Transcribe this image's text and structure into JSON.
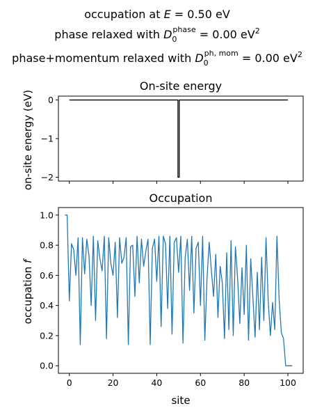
{
  "suptitle": {
    "line1": {
      "pre": "occupation at ",
      "var": "E",
      "post": " = 0.50 eV"
    },
    "line2": {
      "pre": "phase relaxed with ",
      "var": "D",
      "sub": "0",
      "sup": "phase",
      "post": " = 0.00 eV",
      "unit_sup": "2"
    },
    "line3": {
      "pre": "phase+momentum relaxed with ",
      "var": "D",
      "sub": "0",
      "sup": "ph, mom",
      "post": " = 0.00 eV",
      "unit_sup": "2"
    }
  },
  "chart_data": [
    {
      "type": "line",
      "title": "On-site energy",
      "xlabel": "",
      "ylabel": "on-site energy (eV)",
      "xlim": [
        -5,
        107
      ],
      "ylim": [
        -2.1,
        0.1
      ],
      "yticks": [
        0,
        -1,
        -2
      ],
      "ytick_labels": [
        "0",
        "−1",
        "−2"
      ],
      "xticks": [
        0,
        20,
        40,
        60,
        80,
        100
      ],
      "xtick_labels_shown": false,
      "color": "#000000",
      "series": [
        {
          "x": [
            0,
            49.7,
            49.7,
            50.3,
            50.3,
            100
          ],
          "y": [
            0,
            0,
            -2,
            -2,
            0,
            0
          ]
        }
      ]
    },
    {
      "type": "line",
      "title": "Occupation",
      "xlabel": "site",
      "ylabel": "occupation f",
      "xlim": [
        -5,
        107
      ],
      "ylim": [
        -0.05,
        1.05
      ],
      "yticks": [
        0.0,
        0.2,
        0.4,
        0.6,
        0.8,
        1.0
      ],
      "ytick_labels": [
        "0.0",
        "0.2",
        "0.4",
        "0.6",
        "0.8",
        "1.0"
      ],
      "xticks": [
        0,
        20,
        40,
        60,
        80,
        100
      ],
      "xtick_labels": [
        "0",
        "20",
        "40",
        "60",
        "80",
        "100"
      ],
      "color": "#1f77b4",
      "series": [
        {
          "x": [
            -2,
            -1,
            0,
            1,
            2,
            3,
            4,
            5,
            6,
            7,
            8,
            9,
            10,
            11,
            12,
            13,
            14,
            15,
            16,
            17,
            18,
            19,
            20,
            21,
            22,
            23,
            24,
            25,
            26,
            27,
            28,
            29,
            30,
            31,
            32,
            33,
            34,
            35,
            36,
            37,
            38,
            39,
            40,
            41,
            42,
            43,
            44,
            45,
            46,
            47,
            48,
            49,
            50,
            51,
            52,
            53,
            54,
            55,
            56,
            57,
            58,
            59,
            60,
            61,
            62,
            63,
            64,
            65,
            66,
            67,
            68,
            69,
            70,
            71,
            72,
            73,
            74,
            75,
            76,
            77,
            78,
            79,
            80,
            81,
            82,
            83,
            84,
            85,
            86,
            87,
            88,
            89,
            90,
            91,
            92,
            93,
            94,
            95,
            96,
            97,
            98,
            99,
            100,
            101,
            102
          ],
          "y": [
            1.0,
            1.0,
            0.43,
            0.81,
            0.77,
            0.6,
            0.85,
            0.14,
            0.85,
            0.61,
            0.84,
            0.73,
            0.4,
            0.86,
            0.3,
            0.83,
            0.71,
            0.63,
            0.86,
            0.18,
            0.85,
            0.68,
            0.6,
            0.82,
            0.32,
            0.85,
            0.68,
            0.72,
            0.85,
            0.14,
            0.79,
            0.8,
            0.46,
            0.86,
            0.55,
            0.84,
            0.66,
            0.76,
            0.84,
            0.14,
            0.78,
            0.84,
            0.56,
            0.86,
            0.26,
            0.86,
            0.81,
            0.38,
            0.86,
            0.21,
            0.82,
            0.85,
            0.62,
            0.86,
            0.15,
            0.72,
            0.84,
            0.5,
            0.86,
            0.35,
            0.78,
            0.82,
            0.4,
            0.86,
            0.17,
            0.58,
            0.82,
            0.63,
            0.46,
            0.74,
            0.32,
            0.66,
            0.55,
            0.18,
            0.75,
            0.24,
            0.83,
            0.2,
            0.79,
            0.58,
            0.28,
            0.65,
            0.34,
            0.8,
            0.17,
            0.71,
            0.45,
            0.19,
            0.62,
            0.24,
            0.72,
            0.3,
            0.85,
            0.43,
            0.2,
            0.42,
            0.24,
            0.86,
            0.44,
            0.22,
            0.18,
            0.0,
            0.0,
            0.0,
            0.0
          ]
        }
      ]
    }
  ]
}
